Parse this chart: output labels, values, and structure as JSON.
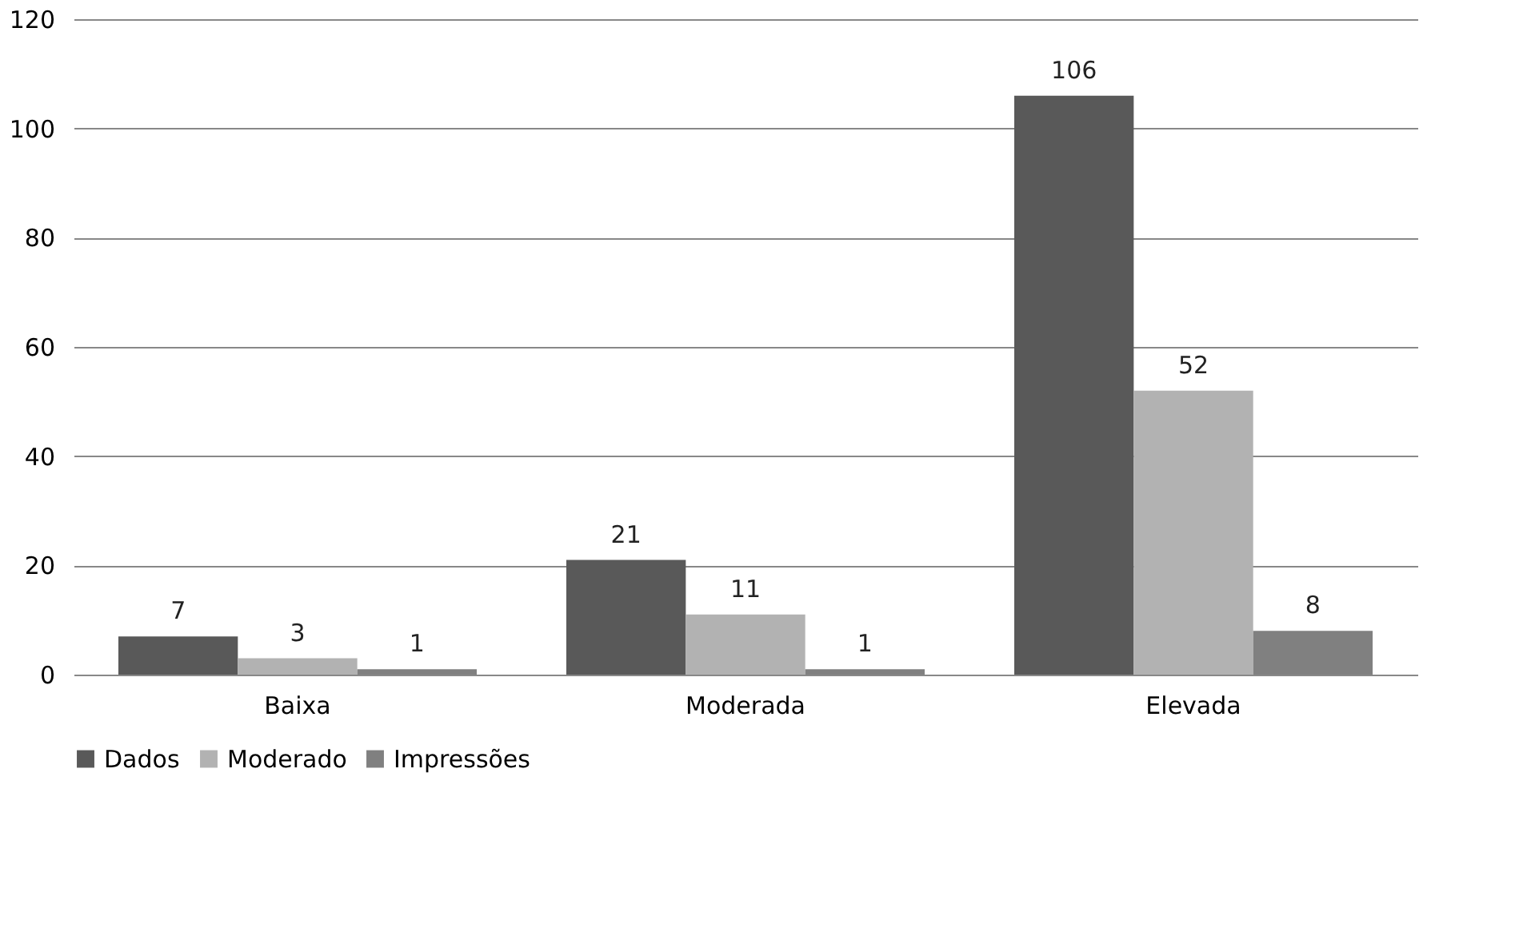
{
  "chart_data": {
    "type": "bar",
    "categories": [
      "Baixa",
      "Moderada",
      "Elevada"
    ],
    "series": [
      {
        "name": "Dados",
        "color": "#595959",
        "values": [
          7,
          21,
          106
        ]
      },
      {
        "name": "Moderado",
        "color": "#b2b2b2",
        "values": [
          3,
          11,
          52
        ]
      },
      {
        "name": "Impressões",
        "color": "#808080",
        "values": [
          1,
          1,
          8
        ]
      }
    ],
    "ylim": [
      0,
      120
    ],
    "yticks": [
      0,
      20,
      40,
      60,
      80,
      100,
      120
    ],
    "grid": "y",
    "legend": "bottom",
    "data_labels": true
  }
}
